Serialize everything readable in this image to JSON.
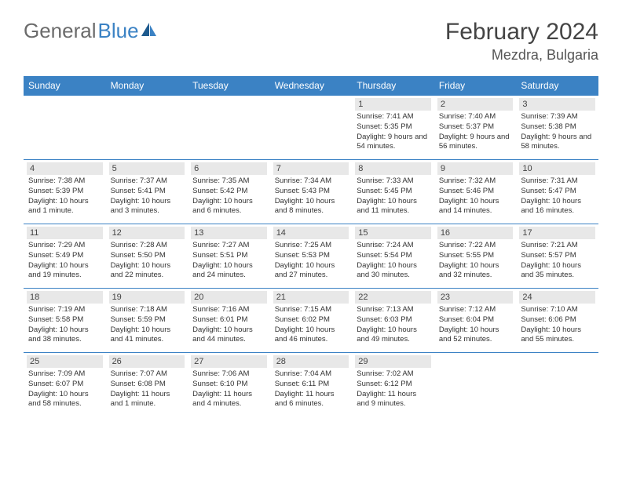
{
  "logo": {
    "text1": "General",
    "text2": "Blue"
  },
  "title": "February 2024",
  "location": "Mezdra, Bulgaria",
  "colors": {
    "header_bg": "#3b82c4",
    "header_text": "#ffffff",
    "daynum_bg": "#e8e8e8",
    "border": "#3b82c4",
    "logo_gray": "#6b6b6b",
    "logo_blue": "#3b82c4"
  },
  "day_names": [
    "Sunday",
    "Monday",
    "Tuesday",
    "Wednesday",
    "Thursday",
    "Friday",
    "Saturday"
  ],
  "weeks": [
    [
      null,
      null,
      null,
      null,
      {
        "n": "1",
        "sr": "7:41 AM",
        "ss": "5:35 PM",
        "dl": "9 hours and 54 minutes."
      },
      {
        "n": "2",
        "sr": "7:40 AM",
        "ss": "5:37 PM",
        "dl": "9 hours and 56 minutes."
      },
      {
        "n": "3",
        "sr": "7:39 AM",
        "ss": "5:38 PM",
        "dl": "9 hours and 58 minutes."
      }
    ],
    [
      {
        "n": "4",
        "sr": "7:38 AM",
        "ss": "5:39 PM",
        "dl": "10 hours and 1 minute."
      },
      {
        "n": "5",
        "sr": "7:37 AM",
        "ss": "5:41 PM",
        "dl": "10 hours and 3 minutes."
      },
      {
        "n": "6",
        "sr": "7:35 AM",
        "ss": "5:42 PM",
        "dl": "10 hours and 6 minutes."
      },
      {
        "n": "7",
        "sr": "7:34 AM",
        "ss": "5:43 PM",
        "dl": "10 hours and 8 minutes."
      },
      {
        "n": "8",
        "sr": "7:33 AM",
        "ss": "5:45 PM",
        "dl": "10 hours and 11 minutes."
      },
      {
        "n": "9",
        "sr": "7:32 AM",
        "ss": "5:46 PM",
        "dl": "10 hours and 14 minutes."
      },
      {
        "n": "10",
        "sr": "7:31 AM",
        "ss": "5:47 PM",
        "dl": "10 hours and 16 minutes."
      }
    ],
    [
      {
        "n": "11",
        "sr": "7:29 AM",
        "ss": "5:49 PM",
        "dl": "10 hours and 19 minutes."
      },
      {
        "n": "12",
        "sr": "7:28 AM",
        "ss": "5:50 PM",
        "dl": "10 hours and 22 minutes."
      },
      {
        "n": "13",
        "sr": "7:27 AM",
        "ss": "5:51 PM",
        "dl": "10 hours and 24 minutes."
      },
      {
        "n": "14",
        "sr": "7:25 AM",
        "ss": "5:53 PM",
        "dl": "10 hours and 27 minutes."
      },
      {
        "n": "15",
        "sr": "7:24 AM",
        "ss": "5:54 PM",
        "dl": "10 hours and 30 minutes."
      },
      {
        "n": "16",
        "sr": "7:22 AM",
        "ss": "5:55 PM",
        "dl": "10 hours and 32 minutes."
      },
      {
        "n": "17",
        "sr": "7:21 AM",
        "ss": "5:57 PM",
        "dl": "10 hours and 35 minutes."
      }
    ],
    [
      {
        "n": "18",
        "sr": "7:19 AM",
        "ss": "5:58 PM",
        "dl": "10 hours and 38 minutes."
      },
      {
        "n": "19",
        "sr": "7:18 AM",
        "ss": "5:59 PM",
        "dl": "10 hours and 41 minutes."
      },
      {
        "n": "20",
        "sr": "7:16 AM",
        "ss": "6:01 PM",
        "dl": "10 hours and 44 minutes."
      },
      {
        "n": "21",
        "sr": "7:15 AM",
        "ss": "6:02 PM",
        "dl": "10 hours and 46 minutes."
      },
      {
        "n": "22",
        "sr": "7:13 AM",
        "ss": "6:03 PM",
        "dl": "10 hours and 49 minutes."
      },
      {
        "n": "23",
        "sr": "7:12 AM",
        "ss": "6:04 PM",
        "dl": "10 hours and 52 minutes."
      },
      {
        "n": "24",
        "sr": "7:10 AM",
        "ss": "6:06 PM",
        "dl": "10 hours and 55 minutes."
      }
    ],
    [
      {
        "n": "25",
        "sr": "7:09 AM",
        "ss": "6:07 PM",
        "dl": "10 hours and 58 minutes."
      },
      {
        "n": "26",
        "sr": "7:07 AM",
        "ss": "6:08 PM",
        "dl": "11 hours and 1 minute."
      },
      {
        "n": "27",
        "sr": "7:06 AM",
        "ss": "6:10 PM",
        "dl": "11 hours and 4 minutes."
      },
      {
        "n": "28",
        "sr": "7:04 AM",
        "ss": "6:11 PM",
        "dl": "11 hours and 6 minutes."
      },
      {
        "n": "29",
        "sr": "7:02 AM",
        "ss": "6:12 PM",
        "dl": "11 hours and 9 minutes."
      },
      null,
      null
    ]
  ],
  "labels": {
    "sunrise": "Sunrise: ",
    "sunset": "Sunset: ",
    "daylight": "Daylight: "
  }
}
